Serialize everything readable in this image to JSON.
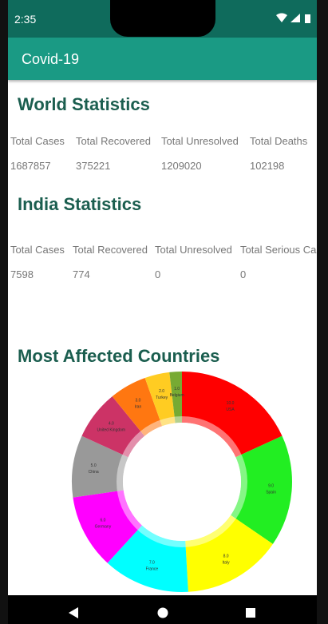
{
  "status_bar": {
    "time": "2:35"
  },
  "app_bar": {
    "title": "Covid-19"
  },
  "world": {
    "title": "World Statistics",
    "headers": [
      "Total Cases",
      "Total Recovered",
      "Total Unresolved",
      "Total Deaths"
    ],
    "values": [
      1687857,
      375221,
      1209020,
      102198
    ]
  },
  "india": {
    "title": "India Statistics",
    "headers": [
      "Total Cases",
      "Total Recovered",
      "Total Unresolved",
      "Total Serious Cases"
    ],
    "values": [
      7598,
      774,
      0,
      0
    ]
  },
  "chart_data": {
    "type": "donut",
    "title": "Most Affected Countries",
    "categories": [
      "USA",
      "Spain",
      "Italy",
      "France",
      "Germany",
      "China",
      "United Kingdom",
      "Iran",
      "Turkey",
      "Belgium"
    ],
    "values": [
      10,
      9,
      8,
      7,
      6,
      5,
      4,
      3,
      2,
      1
    ],
    "value_labels": [
      "10.0",
      "9.0",
      "8.0",
      "7.0",
      "6.0",
      "5.0",
      "4.0",
      "3.0",
      "2.0",
      "1.0"
    ],
    "colors": [
      "#ff0000",
      "#22ee22",
      "#ffff00",
      "#00ffff",
      "#ff00ff",
      "#999999",
      "#cc3366",
      "#ff7711",
      "#ffcc22",
      "#77aa33"
    ]
  }
}
